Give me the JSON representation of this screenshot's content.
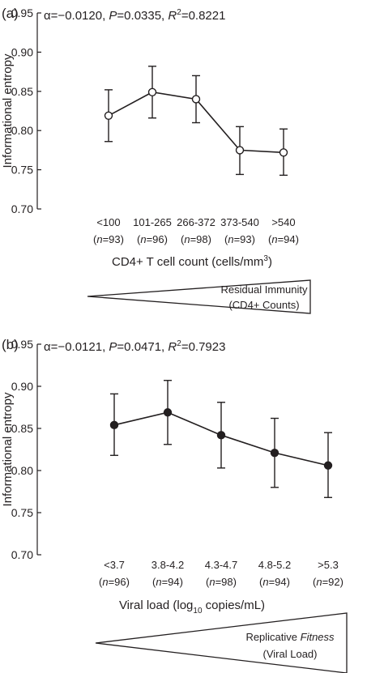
{
  "chart_data": [
    {
      "type": "line",
      "panel_label": "(a)",
      "stats": {
        "alpha_symbol": "α",
        "alpha": "=−0.0120, ",
        "p_symbol": "P",
        "p": "=0.0335, ",
        "r2_symbol": "R",
        "r2_sup": "2",
        "r2": "=0.8221"
      },
      "ylabel": "Informational entropy",
      "xlabel": {
        "pre": "CD4+ T cell count (cells/mm",
        "sup": "3",
        "post": ")"
      },
      "ylim": [
        0.7,
        0.95
      ],
      "yticks": [
        "0.70",
        "0.75",
        "0.80",
        "0.85",
        "0.90",
        "0.95"
      ],
      "categories": [
        "<100",
        "101-265",
        "266-372",
        "373-540",
        ">540"
      ],
      "n_labels": [
        {
          "pre": "(",
          "n": "n",
          "post": "=93)"
        },
        {
          "pre": "(",
          "n": "n",
          "post": "=96)"
        },
        {
          "pre": "(",
          "n": "n",
          "post": "=98)"
        },
        {
          "pre": "(",
          "n": "n",
          "post": "=93)"
        },
        {
          "pre": "(",
          "n": "n",
          "post": "=94)"
        }
      ],
      "series": [
        {
          "marker": "open-circle",
          "values": [
            0.819,
            0.849,
            0.84,
            0.775,
            0.772
          ],
          "err_low": [
            0.786,
            0.816,
            0.81,
            0.744,
            0.743
          ],
          "err_high": [
            0.852,
            0.882,
            0.87,
            0.805,
            0.802
          ]
        }
      ],
      "wedge": {
        "direction": "increasing",
        "line1": "Residual Immunity",
        "line2": "(CD4+ Counts)"
      }
    },
    {
      "type": "line",
      "panel_label": "(b)",
      "stats": {
        "alpha_symbol": "α",
        "alpha": "=−0.0121, ",
        "p_symbol": "P",
        "p": "=0.0471, ",
        "r2_symbol": "R",
        "r2_sup": "2",
        "r2": "=0.7923"
      },
      "ylabel": "Informational entropy",
      "xlabel": {
        "pre": "Viral load (log",
        "sub": "10",
        "post": " copies/mL)"
      },
      "ylim": [
        0.7,
        0.95
      ],
      "yticks": [
        "0.70",
        "0.75",
        "0.80",
        "0.85",
        "0.90",
        "0.95"
      ],
      "categories": [
        "<3.7",
        "3.8-4.2",
        "4.3-4.7",
        "4.8-5.2",
        ">5.3"
      ],
      "n_labels": [
        {
          "pre": "(",
          "n": "n",
          "post": "=96)"
        },
        {
          "pre": "(",
          "n": "n",
          "post": "=94)"
        },
        {
          "pre": "(",
          "n": "n",
          "post": "=98)"
        },
        {
          "pre": "(",
          "n": "n",
          "post": "=94)"
        },
        {
          "pre": "(",
          "n": "n",
          "post": "=92)"
        }
      ],
      "series": [
        {
          "marker": "filled-circle",
          "values": [
            0.854,
            0.869,
            0.842,
            0.821,
            0.806
          ],
          "err_low": [
            0.818,
            0.831,
            0.803,
            0.78,
            0.768
          ],
          "err_high": [
            0.891,
            0.907,
            0.881,
            0.862,
            0.845
          ]
        }
      ],
      "wedge": {
        "direction": "increasing",
        "line1": "Replicative ",
        "line1_italic": "Fitness",
        "line2": "(Viral Load)"
      }
    }
  ]
}
